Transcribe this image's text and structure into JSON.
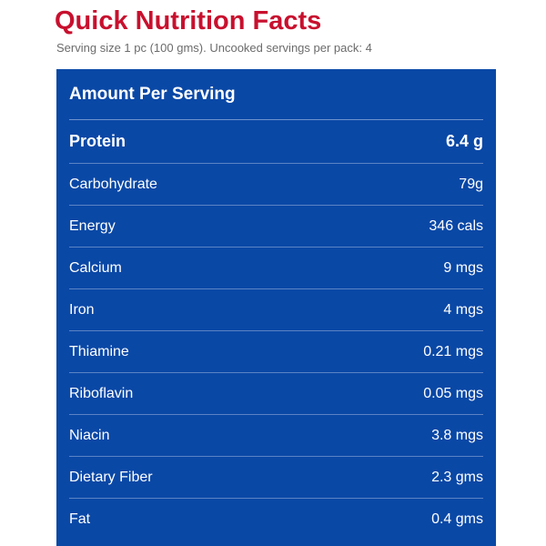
{
  "title": "Quick Nutrition Facts",
  "serving_info": "Serving size 1 pc (100 gms). Uncooked servings per pack: 4",
  "colors": {
    "title": "#c8102e",
    "panel_background": "#0a48a6",
    "divider": "#5b83c4",
    "subtitle": "#6b6b6b",
    "panel_text": "#ffffff"
  },
  "table": {
    "header": "Amount Per Serving",
    "primary": {
      "label": "Protein",
      "value": "6.4 g"
    },
    "rows": [
      {
        "label": "Carbohydrate",
        "value": "79g"
      },
      {
        "label": "Energy",
        "value": "346 cals"
      },
      {
        "label": "Calcium",
        "value": "9 mgs"
      },
      {
        "label": "Iron",
        "value": "4 mgs"
      },
      {
        "label": "Thiamine",
        "value": "0.21 mgs"
      },
      {
        "label": "Riboflavin",
        "value": "0.05 mgs"
      },
      {
        "label": "Niacin",
        "value": "3.8 mgs"
      },
      {
        "label": "Dietary Fiber",
        "value": "2.3 gms"
      },
      {
        "label": "Fat",
        "value": "0.4 gms"
      }
    ]
  }
}
